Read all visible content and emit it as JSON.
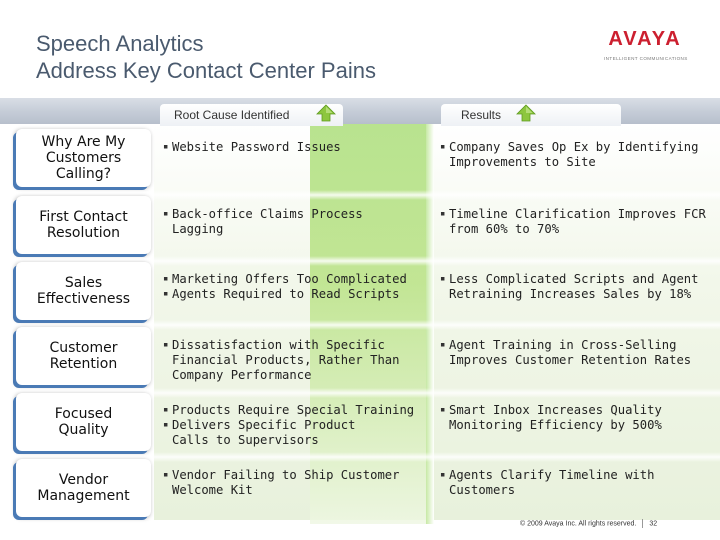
{
  "title": {
    "line1": "Speech Analytics",
    "line2": "Address Key Contact Center Pains"
  },
  "logo": {
    "brand": "AVAYA",
    "tagline": "INTELLIGENT COMMUNICATIONS",
    "brand_color": "#cc1f2f"
  },
  "headers": {
    "root_cause": "Root Cause Identified",
    "results": "Results",
    "arrow_icon": "green-up-arrow-icon"
  },
  "rows": [
    {
      "label": "Why Are My\nCustomers\nCalling?",
      "root_causes": [
        "Website Password Issues"
      ],
      "results": [
        "Company Saves Op Ex by Identifying\nImprovements to Site"
      ]
    },
    {
      "label": "First Contact\nResolution",
      "root_causes": [
        "Back-office Claims Process\nLagging"
      ],
      "results": [
        "Timeline Clarification Improves FCR\nfrom 60% to 70%"
      ]
    },
    {
      "label": "Sales\nEffectiveness",
      "root_causes": [
        "Marketing Offers Too Complicated",
        "Agents Required to Read Scripts"
      ],
      "results": [
        "Less Complicated Scripts and Agent\nRetraining  Increases Sales by 18%"
      ]
    },
    {
      "label": "Customer\nRetention",
      "root_causes": [
        "Dissatisfaction with Specific\nFinancial Products, Rather Than\nCompany Performance"
      ],
      "results": [
        "Agent Training in Cross-Selling\nImproves Customer Retention Rates"
      ]
    },
    {
      "label": "Focused\nQuality",
      "root_causes": [
        "Products Require Special Training",
        "Delivers Specific Product\nCalls to Supervisors"
      ],
      "results": [
        "Smart Inbox Increases Quality\nMonitoring Efficiency by 500%"
      ]
    },
    {
      "label": "Vendor\nManagement",
      "root_causes": [
        "Vendor Failing to Ship Customer\nWelcome Kit"
      ],
      "results": [
        "Agents Clarify Timeline with\nCustomers"
      ]
    }
  ],
  "footer": {
    "copyright": "© 2009 Avaya Inc. All rights reserved.",
    "page_number": "32"
  },
  "colors": {
    "accent_blue": "#4a7ab5",
    "accent_green": "#8dc63f",
    "title_gray": "#4a5a6e"
  }
}
